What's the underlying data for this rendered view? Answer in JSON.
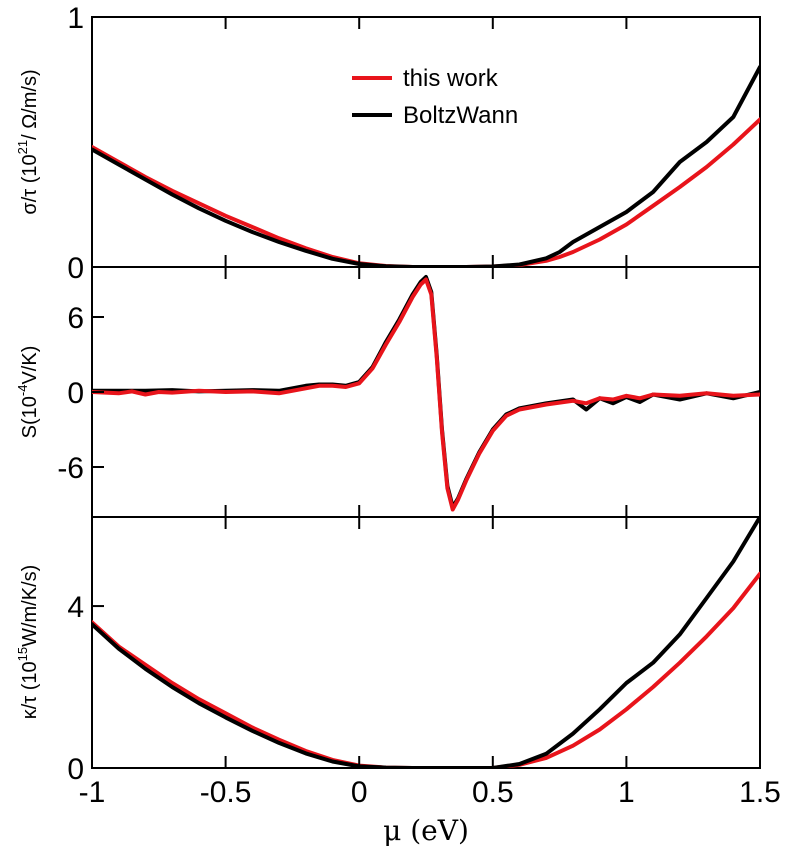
{
  "chart_data": [
    {
      "type": "line",
      "panel": "top",
      "ylabel_parts": [
        "σ/τ (10",
        "21",
        "/ Ω/m/s)"
      ],
      "xlim": [
        -1,
        1.5
      ],
      "ylim": [
        0,
        1
      ],
      "yticks": [
        {
          "value": 0,
          "label": "0"
        },
        {
          "value": 1,
          "label": "1"
        }
      ],
      "legend": {
        "placement": "top-center",
        "entries": [
          "this work",
          "BoltzWann"
        ]
      },
      "series": [
        {
          "name": "this work",
          "color": "#e8141b",
          "x": [
            -1.0,
            -0.9,
            -0.8,
            -0.7,
            -0.6,
            -0.5,
            -0.4,
            -0.3,
            -0.2,
            -0.1,
            0.0,
            0.1,
            0.2,
            0.3,
            0.4,
            0.5,
            0.6,
            0.7,
            0.75,
            0.8,
            0.9,
            1.0,
            1.1,
            1.2,
            1.3,
            1.4,
            1.5
          ],
          "y": [
            0.48,
            0.42,
            0.36,
            0.305,
            0.255,
            0.205,
            0.16,
            0.115,
            0.075,
            0.04,
            0.015,
            0.004,
            0.0,
            0.0,
            0.0,
            0.002,
            0.008,
            0.025,
            0.04,
            0.06,
            0.11,
            0.17,
            0.245,
            0.32,
            0.4,
            0.49,
            0.59
          ]
        },
        {
          "name": "BoltzWann",
          "color": "#000000",
          "x": [
            -1.0,
            -0.9,
            -0.8,
            -0.7,
            -0.6,
            -0.5,
            -0.4,
            -0.3,
            -0.2,
            -0.1,
            0.0,
            0.1,
            0.2,
            0.3,
            0.4,
            0.5,
            0.6,
            0.7,
            0.75,
            0.8,
            0.9,
            1.0,
            1.1,
            1.2,
            1.3,
            1.4,
            1.5
          ],
          "y": [
            0.47,
            0.41,
            0.35,
            0.29,
            0.235,
            0.185,
            0.14,
            0.1,
            0.065,
            0.033,
            0.012,
            0.003,
            0.0,
            0.0,
            0.0,
            0.002,
            0.01,
            0.035,
            0.06,
            0.1,
            0.16,
            0.22,
            0.3,
            0.42,
            0.5,
            0.6,
            0.8
          ]
        }
      ]
    },
    {
      "type": "line",
      "panel": "middle",
      "ylabel_parts": [
        "S(10",
        "-4",
        "V/K)"
      ],
      "xlim": [
        -1,
        1.5
      ],
      "ylim": [
        -10,
        10
      ],
      "yticks": [
        {
          "value": 6,
          "label": "6"
        },
        {
          "value": 0,
          "label": "0"
        },
        {
          "value": -6,
          "label": "-6"
        }
      ],
      "series": [
        {
          "name": "BoltzWann",
          "color": "#000000",
          "x": [
            -1.0,
            -0.9,
            -0.8,
            -0.7,
            -0.6,
            -0.5,
            -0.4,
            -0.3,
            -0.2,
            -0.15,
            -0.1,
            -0.05,
            0.0,
            0.05,
            0.1,
            0.15,
            0.2,
            0.23,
            0.25,
            0.27,
            0.29,
            0.31,
            0.33,
            0.35,
            0.37,
            0.4,
            0.45,
            0.5,
            0.55,
            0.6,
            0.7,
            0.8,
            0.85,
            0.9,
            0.95,
            1.0,
            1.05,
            1.1,
            1.2,
            1.3,
            1.4,
            1.5
          ],
          "y": [
            0.1,
            0.1,
            0.1,
            0.15,
            0.05,
            0.1,
            0.15,
            0.1,
            0.5,
            0.6,
            0.6,
            0.5,
            0.8,
            2.0,
            4.0,
            5.8,
            7.8,
            8.8,
            9.2,
            8.0,
            3.0,
            -3.0,
            -7.5,
            -9.2,
            -8.5,
            -7.0,
            -4.8,
            -3.0,
            -1.8,
            -1.3,
            -0.9,
            -0.6,
            -1.4,
            -0.5,
            -0.9,
            -0.4,
            -0.8,
            -0.2,
            -0.6,
            -0.1,
            -0.5,
            0.0
          ]
        },
        {
          "name": "this work",
          "color": "#e8141b",
          "x": [
            -1.0,
            -0.9,
            -0.85,
            -0.8,
            -0.75,
            -0.7,
            -0.6,
            -0.5,
            -0.4,
            -0.3,
            -0.2,
            -0.15,
            -0.1,
            -0.05,
            0.0,
            0.05,
            0.1,
            0.15,
            0.2,
            0.23,
            0.25,
            0.27,
            0.29,
            0.31,
            0.33,
            0.35,
            0.37,
            0.4,
            0.45,
            0.5,
            0.55,
            0.6,
            0.7,
            0.8,
            0.85,
            0.9,
            0.95,
            1.0,
            1.05,
            1.1,
            1.2,
            1.3,
            1.4,
            1.5
          ],
          "y": [
            0.0,
            -0.1,
            0.05,
            -0.2,
            0.0,
            -0.05,
            0.1,
            0.0,
            0.05,
            -0.1,
            0.3,
            0.5,
            0.5,
            0.4,
            0.7,
            1.9,
            3.8,
            5.6,
            7.6,
            8.6,
            9.0,
            7.8,
            2.8,
            -3.2,
            -7.7,
            -9.4,
            -8.6,
            -7.1,
            -4.9,
            -3.1,
            -1.9,
            -1.4,
            -1.0,
            -0.7,
            -0.9,
            -0.5,
            -0.6,
            -0.3,
            -0.5,
            -0.2,
            -0.3,
            -0.1,
            -0.3,
            -0.2
          ]
        }
      ]
    },
    {
      "type": "line",
      "panel": "bottom",
      "ylabel_parts": [
        "κ/τ (10",
        "15",
        "W/m/K/s)"
      ],
      "xlim": [
        -1,
        1.5
      ],
      "ylim": [
        0,
        6.2
      ],
      "yticks": [
        {
          "value": 0,
          "label": "0"
        },
        {
          "value": 4,
          "label": "4"
        }
      ],
      "xticks": [
        {
          "value": -1,
          "label": "-1"
        },
        {
          "value": -0.5,
          "label": "-0.5"
        },
        {
          "value": 0,
          "label": "0"
        },
        {
          "value": 0.5,
          "label": "0.5"
        },
        {
          "value": 1,
          "label": "1"
        },
        {
          "value": 1.5,
          "label": "1.5"
        }
      ],
      "xlabel": "μ (eV)",
      "series": [
        {
          "name": "this work",
          "color": "#e8141b",
          "x": [
            -1.0,
            -0.9,
            -0.8,
            -0.7,
            -0.6,
            -0.5,
            -0.4,
            -0.3,
            -0.2,
            -0.1,
            0.0,
            0.1,
            0.2,
            0.3,
            0.4,
            0.5,
            0.6,
            0.7,
            0.8,
            0.9,
            1.0,
            1.1,
            1.2,
            1.3,
            1.4,
            1.5
          ],
          "y": [
            3.6,
            3.0,
            2.55,
            2.1,
            1.7,
            1.35,
            1.0,
            0.7,
            0.42,
            0.2,
            0.06,
            0.01,
            0.0,
            0.0,
            0.0,
            0.0,
            0.08,
            0.25,
            0.55,
            0.95,
            1.45,
            2.0,
            2.6,
            3.25,
            3.95,
            4.8
          ]
        },
        {
          "name": "BoltzWann",
          "color": "#000000",
          "x": [
            -1.0,
            -0.9,
            -0.8,
            -0.7,
            -0.6,
            -0.5,
            -0.4,
            -0.3,
            -0.2,
            -0.1,
            0.0,
            0.1,
            0.2,
            0.3,
            0.4,
            0.5,
            0.6,
            0.7,
            0.8,
            0.9,
            1.0,
            1.1,
            1.2,
            1.3,
            1.4,
            1.5
          ],
          "y": [
            3.55,
            2.95,
            2.45,
            2.0,
            1.6,
            1.25,
            0.92,
            0.62,
            0.36,
            0.16,
            0.04,
            0.01,
            0.0,
            0.0,
            0.0,
            0.0,
            0.1,
            0.35,
            0.85,
            1.45,
            2.1,
            2.6,
            3.3,
            4.2,
            5.1,
            6.2
          ]
        }
      ]
    }
  ]
}
